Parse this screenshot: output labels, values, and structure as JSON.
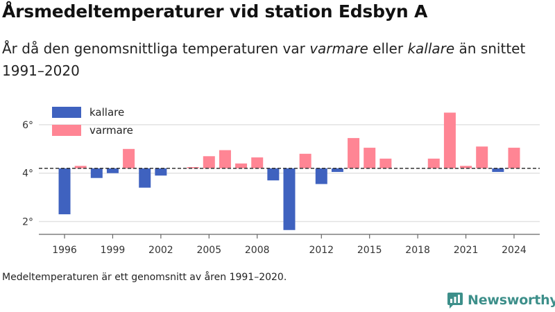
{
  "title": "Årsmedeltemperaturer vid station Edsbyn A",
  "subtitle": {
    "part1": "År då den genomsnittliga temperaturen var ",
    "warmer_word": "varmare",
    "part2": " eller ",
    "colder_word": "kallare",
    "part3": " än snittet 1991–2020"
  },
  "footnote": "Medeltemperaturen är ett genomsnitt av åren 1991–2020.",
  "brand": {
    "name": "Newsworthy",
    "icon": "newsworthy-logo-icon",
    "color": "#3d8f8a"
  },
  "chart_data": {
    "type": "bar",
    "baseline": 4.2,
    "baseline_style": "dashed",
    "colors": {
      "kallare": "#3f62bf",
      "varmare": "#ff8594"
    },
    "legend": {
      "placement": "top-left",
      "entries": [
        {
          "key": "kallare",
          "label": "kallare"
        },
        {
          "key": "varmare",
          "label": "varmare"
        }
      ]
    },
    "ylim": [
      1.5,
      7.0
    ],
    "yticks": [
      {
        "value": 2,
        "label": "2°"
      },
      {
        "value": 4,
        "label": "4°"
      },
      {
        "value": 6,
        "label": "6°"
      }
    ],
    "xlim": [
      1994.4,
      2025.6
    ],
    "xticks": [
      1996,
      1999,
      2002,
      2005,
      2008,
      2012,
      2015,
      2018,
      2021,
      2024
    ],
    "grid": {
      "horizontal": true,
      "vertical": false
    },
    "xlabel": "",
    "ylabel": "",
    "years": [
      1996,
      1997,
      1998,
      1999,
      2000,
      2001,
      2002,
      2003,
      2004,
      2005,
      2006,
      2007,
      2008,
      2009,
      2010,
      2011,
      2012,
      2013,
      2014,
      2015,
      2016,
      2017,
      2018,
      2019,
      2020,
      2021,
      2022,
      2023,
      2024
    ],
    "values": [
      2.3,
      4.3,
      3.8,
      4.0,
      5.0,
      3.4,
      3.9,
      null,
      4.25,
      4.7,
      4.95,
      4.4,
      4.65,
      3.7,
      1.65,
      4.8,
      3.55,
      4.05,
      5.45,
      5.05,
      4.6,
      null,
      null,
      4.6,
      6.5,
      4.3,
      5.1,
      4.05,
      5.05
    ]
  }
}
